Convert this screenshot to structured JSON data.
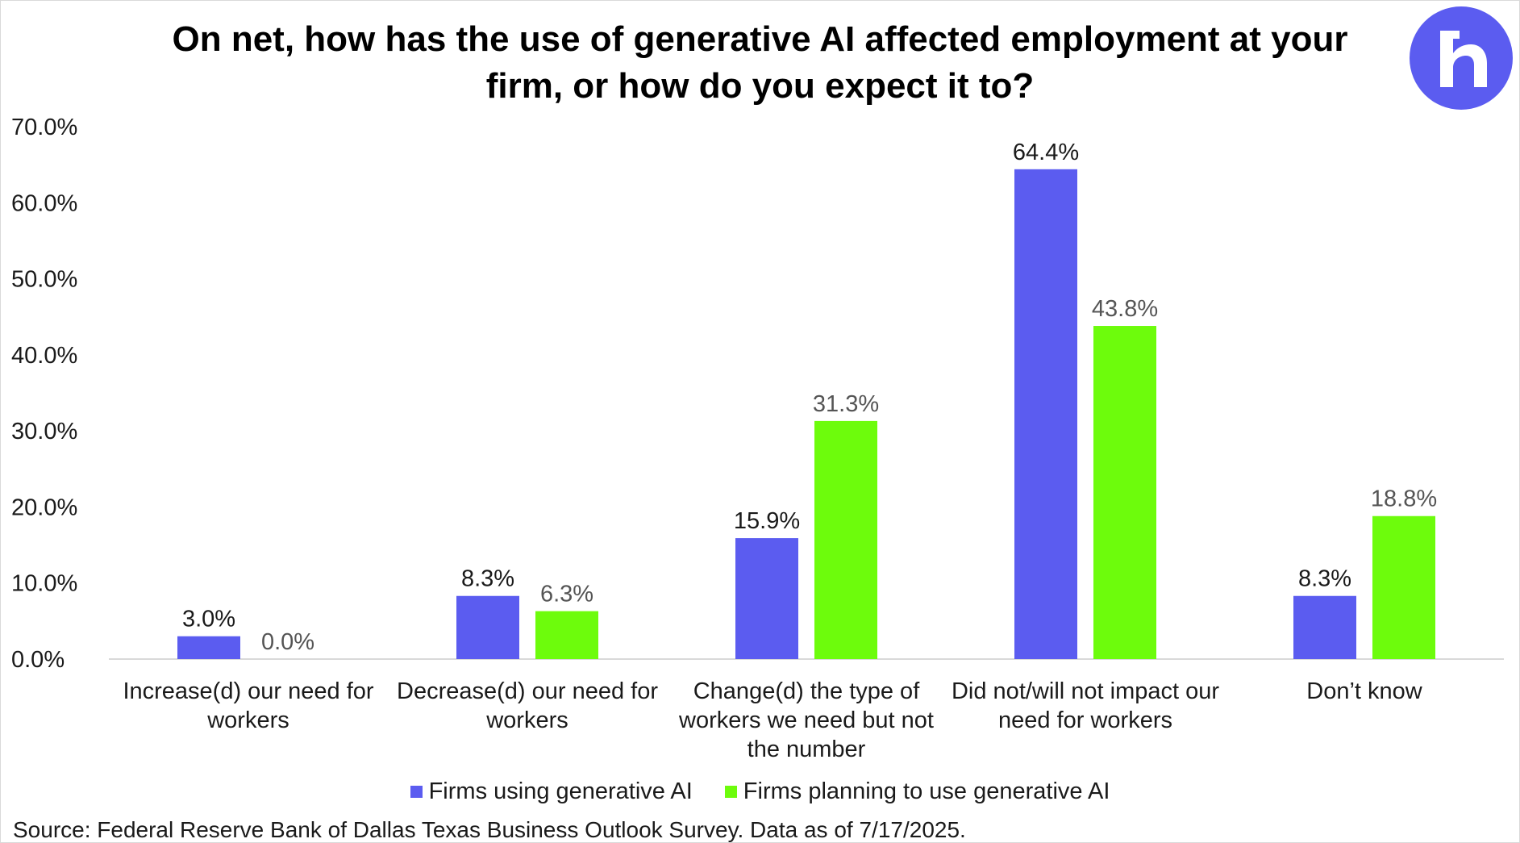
{
  "header": {
    "title_line1": "On net, how has the use of generative AI affected employment at your",
    "title_line2": "firm, or how do you expect it to?",
    "logo_icon": "brand-h-logo-icon"
  },
  "colors": {
    "series1": "#5b5cf0",
    "series2": "#6dfc0c",
    "logo_bg": "#5b5cf0",
    "axis_line": "#d9d9d9"
  },
  "chart_data": {
    "type": "bar",
    "categories": [
      [
        "Increase(d) our need for",
        "workers"
      ],
      [
        "Decrease(d) our need for",
        "workers"
      ],
      [
        "Change(d) the type of",
        "workers we need but not",
        "the number"
      ],
      [
        "Did not/will not impact our",
        "need for workers"
      ],
      [
        "Don’t know"
      ]
    ],
    "series": [
      {
        "name": "Firms using generative AI",
        "values": [
          3.0,
          8.3,
          15.9,
          64.4,
          8.3
        ],
        "labels": [
          "3.0%",
          "8.3%",
          "15.9%",
          "64.4%",
          "8.3%"
        ]
      },
      {
        "name": "Firms planning to use generative AI",
        "values": [
          0.0,
          6.3,
          31.3,
          43.8,
          18.8
        ],
        "labels": [
          "0.0%",
          "6.3%",
          "31.3%",
          "43.8%",
          "18.8%"
        ]
      }
    ],
    "ylim": [
      0,
      70
    ],
    "yticks": [
      "0.0%",
      "10.0%",
      "20.0%",
      "30.0%",
      "40.0%",
      "50.0%",
      "60.0%",
      "70.0%"
    ],
    "grid": false,
    "legend_position": "bottom"
  },
  "legend": {
    "item1": "Firms using generative AI",
    "item2": "Firms planning to use generative AI"
  },
  "footer": {
    "source": "Source: Federal Reserve Bank of Dallas Texas Business Outlook Survey. Data as of 7/17/2025."
  }
}
